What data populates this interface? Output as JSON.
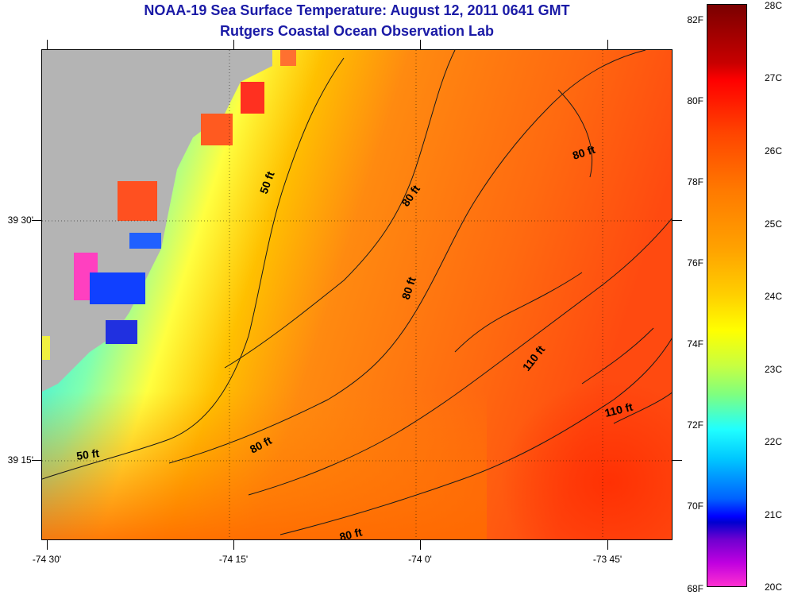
{
  "title": {
    "line1": "NOAA-19 Sea Surface Temperature:  August 12, 2011 0641 GMT",
    "line2": "Rutgers Coastal Ocean Observation Lab"
  },
  "axes": {
    "y_labels": [
      "39 30'",
      "39 15'"
    ],
    "x_labels": [
      "-74 30'",
      "-74 15'",
      "-74 0'",
      "-73 45'"
    ]
  },
  "contour_labels": [
    "50 ft",
    "80 ft",
    "80 ft",
    "80 ft",
    "110 ft",
    "110 ft",
    "50 ft",
    "80 ft",
    "80 ft"
  ],
  "colorbar": {
    "fahrenheit": [
      "82F",
      "80F",
      "78F",
      "76F",
      "74F",
      "72F",
      "70F",
      "68F"
    ],
    "celsius": [
      "28C",
      "27C",
      "26C",
      "25C",
      "24C",
      "23C",
      "22C",
      "21C",
      "20C"
    ]
  },
  "colors": {
    "land": "#b4b4b4",
    "title": "#1a1aa6",
    "contour": "#1a1a1a"
  }
}
